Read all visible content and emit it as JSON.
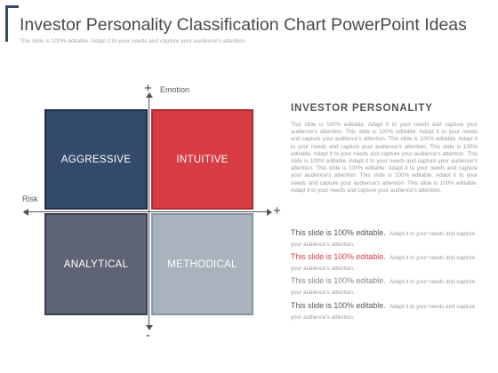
{
  "slide": {
    "title": "Investor Personality Classification Chart PowerPoint Ideas",
    "subtitle": "This slide is 100% editable. Adapt it to your needs and capture your audience's attention."
  },
  "matrix": {
    "quadrants": [
      {
        "id": "aggressive",
        "label": "AGGRESSIVE",
        "color": "#334a6a"
      },
      {
        "id": "intuitive",
        "label": "INTUITIVE",
        "color": "#d83c43"
      },
      {
        "id": "analytical",
        "label": "ANALYTICAL",
        "color": "#5e6475"
      },
      {
        "id": "methodical",
        "label": "METHODICAL",
        "color": "#a9b3bd"
      }
    ],
    "axes": {
      "vertical_label": "Emotion",
      "horizontal_label": "Risk",
      "top_sign": "+",
      "bottom_sign": "-",
      "left_sign": "-",
      "right_sign": "+"
    }
  },
  "panel": {
    "heading": "INVESTOR PERSONALITY",
    "body": "This slide is 100% editable. Adapt it to your needs and capture your audience's attention. This slide is 100% editable. Adapt it to your needs and capture your audience's attention. This slide is 100% editable. Adapt it to your needs and capture your audience's attention. This slide is 100% editable. Adapt it to your needs and capture your audience's attention. This slide is 100% editable. Adapt it to your needs and capture your audience's attention. This slide is 100% editable. Adapt it to your needs and capture your audience's attention. This slide is 100% editable. Adapt it to your needs and capture your audience's attention. This slide is 100% editable. Adapt it to your needs and capture your audience's attention.",
    "items": [
      {
        "lead": "This slide is 100% editable.",
        "rest": "Adapt it to your needs and capture your audience's attention."
      },
      {
        "lead": "This slide is 100% editable.",
        "rest": "Adapt it to your needs and capture your audience's attention."
      },
      {
        "lead": "This slide is 100% editable.",
        "rest": "Adapt it to your needs and capture your audience's attention."
      },
      {
        "lead": "This slide is 100% editable.",
        "rest": "Adapt it to your needs and capture your audience's attention."
      }
    ]
  }
}
